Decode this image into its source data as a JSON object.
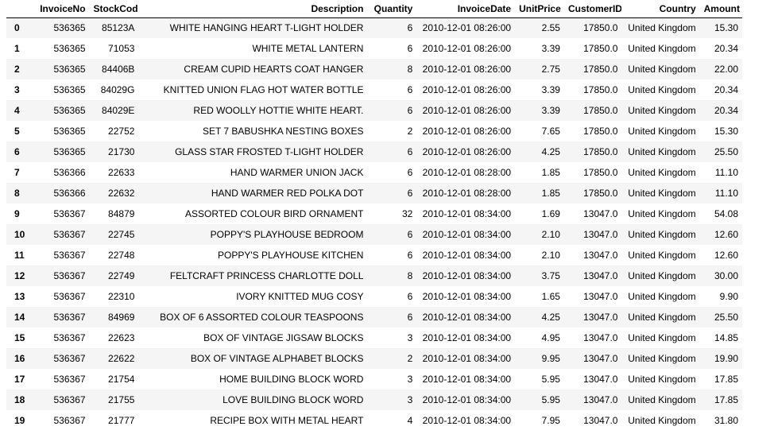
{
  "table": {
    "columns": [
      "",
      "InvoiceNo",
      "StockCode",
      "Description",
      "Quantity",
      "InvoiceDate",
      "UnitPrice",
      "CustomerID",
      "Country",
      "Amount"
    ],
    "rows": [
      {
        "index": "0",
        "cells": [
          "536365",
          "85123A",
          "WHITE HANGING HEART T-LIGHT HOLDER",
          "6",
          "2010-12-01 08:26:00",
          "2.55",
          "17850.0",
          "United Kingdom",
          "15.30"
        ]
      },
      {
        "index": "1",
        "cells": [
          "536365",
          "71053",
          "WHITE METAL LANTERN",
          "6",
          "2010-12-01 08:26:00",
          "3.39",
          "17850.0",
          "United Kingdom",
          "20.34"
        ]
      },
      {
        "index": "2",
        "cells": [
          "536365",
          "84406B",
          "CREAM CUPID HEARTS COAT HANGER",
          "8",
          "2010-12-01 08:26:00",
          "2.75",
          "17850.0",
          "United Kingdom",
          "22.00"
        ]
      },
      {
        "index": "3",
        "cells": [
          "536365",
          "84029G",
          "KNITTED UNION FLAG HOT WATER BOTTLE",
          "6",
          "2010-12-01 08:26:00",
          "3.39",
          "17850.0",
          "United Kingdom",
          "20.34"
        ]
      },
      {
        "index": "4",
        "cells": [
          "536365",
          "84029E",
          "RED WOOLLY HOTTIE WHITE HEART.",
          "6",
          "2010-12-01 08:26:00",
          "3.39",
          "17850.0",
          "United Kingdom",
          "20.34"
        ]
      },
      {
        "index": "5",
        "cells": [
          "536365",
          "22752",
          "SET 7 BABUSHKA NESTING BOXES",
          "2",
          "2010-12-01 08:26:00",
          "7.65",
          "17850.0",
          "United Kingdom",
          "15.30"
        ]
      },
      {
        "index": "6",
        "cells": [
          "536365",
          "21730",
          "GLASS STAR FROSTED T-LIGHT HOLDER",
          "6",
          "2010-12-01 08:26:00",
          "4.25",
          "17850.0",
          "United Kingdom",
          "25.50"
        ]
      },
      {
        "index": "7",
        "cells": [
          "536366",
          "22633",
          "HAND WARMER UNION JACK",
          "6",
          "2010-12-01 08:28:00",
          "1.85",
          "17850.0",
          "United Kingdom",
          "11.10"
        ]
      },
      {
        "index": "8",
        "cells": [
          "536366",
          "22632",
          "HAND WARMER RED POLKA DOT",
          "6",
          "2010-12-01 08:28:00",
          "1.85",
          "17850.0",
          "United Kingdom",
          "11.10"
        ]
      },
      {
        "index": "9",
        "cells": [
          "536367",
          "84879",
          "ASSORTED COLOUR BIRD ORNAMENT",
          "32",
          "2010-12-01 08:34:00",
          "1.69",
          "13047.0",
          "United Kingdom",
          "54.08"
        ]
      },
      {
        "index": "10",
        "cells": [
          "536367",
          "22745",
          "POPPY'S PLAYHOUSE BEDROOM",
          "6",
          "2010-12-01 08:34:00",
          "2.10",
          "13047.0",
          "United Kingdom",
          "12.60"
        ]
      },
      {
        "index": "11",
        "cells": [
          "536367",
          "22748",
          "POPPY'S PLAYHOUSE KITCHEN",
          "6",
          "2010-12-01 08:34:00",
          "2.10",
          "13047.0",
          "United Kingdom",
          "12.60"
        ]
      },
      {
        "index": "12",
        "cells": [
          "536367",
          "22749",
          "FELTCRAFT PRINCESS CHARLOTTE DOLL",
          "8",
          "2010-12-01 08:34:00",
          "3.75",
          "13047.0",
          "United Kingdom",
          "30.00"
        ]
      },
      {
        "index": "13",
        "cells": [
          "536367",
          "22310",
          "IVORY KNITTED MUG COSY",
          "6",
          "2010-12-01 08:34:00",
          "1.65",
          "13047.0",
          "United Kingdom",
          "9.90"
        ]
      },
      {
        "index": "14",
        "cells": [
          "536367",
          "84969",
          "BOX OF 6 ASSORTED COLOUR TEASPOONS",
          "6",
          "2010-12-01 08:34:00",
          "4.25",
          "13047.0",
          "United Kingdom",
          "25.50"
        ]
      },
      {
        "index": "15",
        "cells": [
          "536367",
          "22623",
          "BOX OF VINTAGE JIGSAW BLOCKS",
          "3",
          "2010-12-01 08:34:00",
          "4.95",
          "13047.0",
          "United Kingdom",
          "14.85"
        ]
      },
      {
        "index": "16",
        "cells": [
          "536367",
          "22622",
          "BOX OF VINTAGE ALPHABET BLOCKS",
          "2",
          "2010-12-01 08:34:00",
          "9.95",
          "13047.0",
          "United Kingdom",
          "19.90"
        ]
      },
      {
        "index": "17",
        "cells": [
          "536367",
          "21754",
          "HOME BUILDING BLOCK WORD",
          "3",
          "2010-12-01 08:34:00",
          "5.95",
          "13047.0",
          "United Kingdom",
          "17.85"
        ]
      },
      {
        "index": "18",
        "cells": [
          "536367",
          "21755",
          "LOVE BUILDING BLOCK WORD",
          "3",
          "2010-12-01 08:34:00",
          "5.95",
          "13047.0",
          "United Kingdom",
          "17.85"
        ]
      },
      {
        "index": "19",
        "cells": [
          "536367",
          "21777",
          "RECIPE BOX WITH METAL HEART",
          "4",
          "2010-12-01 08:34:00",
          "7.95",
          "13047.0",
          "United Kingdom",
          "31.80"
        ]
      }
    ]
  },
  "colors": {
    "stripe": "#f5f5f5",
    "background": "#ffffff",
    "text": "#000000"
  }
}
